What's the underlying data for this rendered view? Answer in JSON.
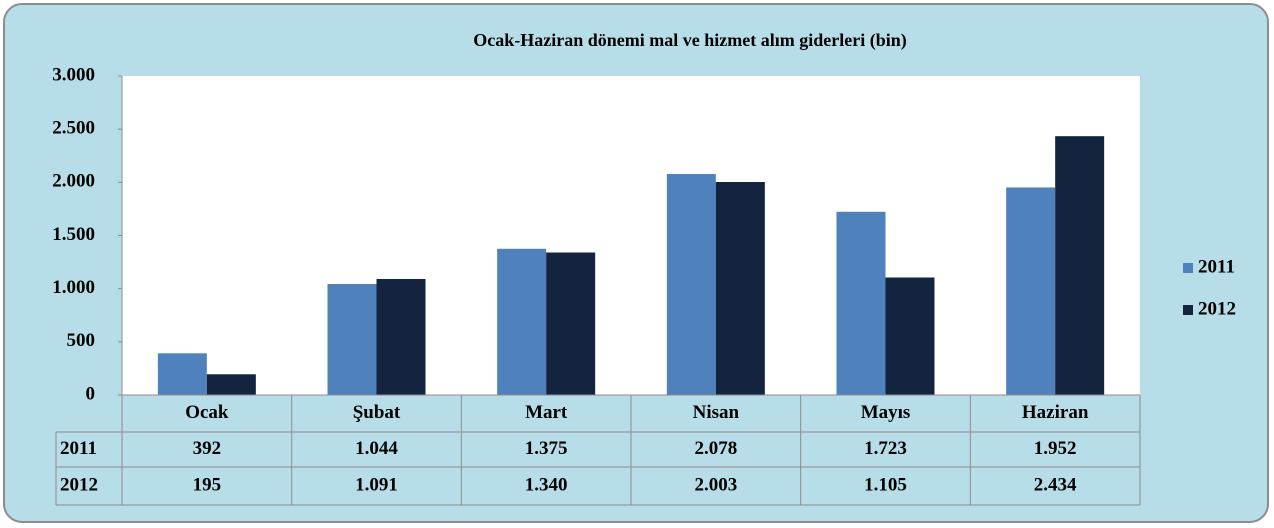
{
  "chart_data": {
    "type": "bar",
    "title": "Ocak-Haziran dönemi mal ve hizmet alım giderleri (bin)",
    "categories": [
      "Ocak",
      "Şubat",
      "Mart",
      "Nisan",
      "Mayıs",
      "Haziran"
    ],
    "series": [
      {
        "name": "2011",
        "color": "#4f81bd",
        "values": [
          392,
          1044,
          1375,
          2078,
          1723,
          1952
        ],
        "value_labels": [
          "392",
          "1.044",
          "1.375",
          "2.078",
          "1.723",
          "1.952"
        ]
      },
      {
        "name": "2012",
        "color": "#14243f",
        "values": [
          195,
          1091,
          1340,
          2003,
          1105,
          2434
        ],
        "value_labels": [
          "195",
          "1.091",
          "1.340",
          "2.003",
          "1.105",
          "2.434"
        ]
      }
    ],
    "ylim": [
      0,
      3000
    ],
    "yticks": [
      0,
      500,
      {
        "value": 1000,
        "label": "1.000"
      },
      {
        "value": 1500,
        "label": "1.500"
      },
      {
        "value": 2000,
        "label": "2.000"
      },
      {
        "value": 2500,
        "label": "2.500"
      },
      {
        "value": 3000,
        "label": "3.000"
      }
    ],
    "legend": "right"
  }
}
